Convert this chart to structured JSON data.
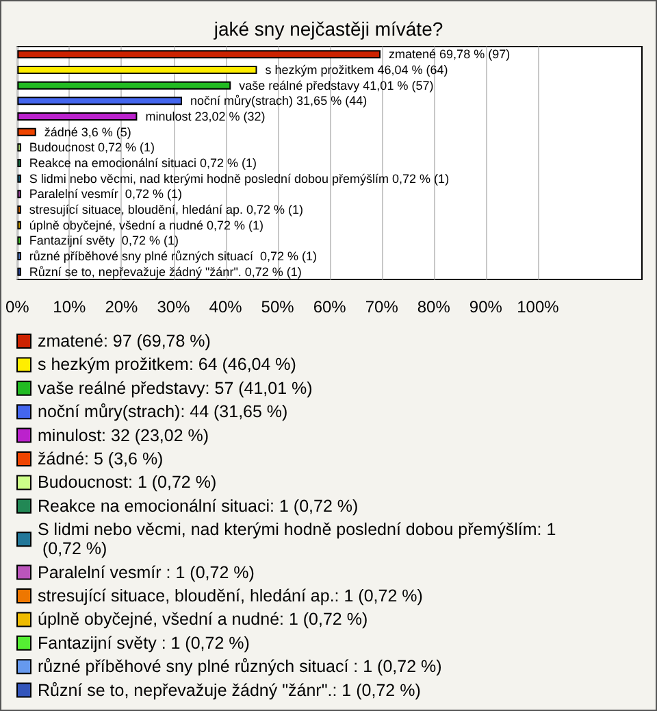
{
  "chart_data": {
    "type": "bar",
    "orientation": "horizontal",
    "stacked": true,
    "title": "jaké sny nejčastěji míváte?",
    "categories": [
      null,
      null,
      null,
      null,
      null,
      null,
      null,
      null,
      null,
      null,
      null,
      null,
      null,
      null,
      null
    ],
    "xlim": [
      0,
      120
    ],
    "xticks": [
      {
        "value": 0,
        "label": "0%"
      },
      {
        "value": 10,
        "label": "10%"
      },
      {
        "value": 20,
        "label": "20%"
      },
      {
        "value": 30,
        "label": "30%"
      },
      {
        "value": 40,
        "label": "40%"
      },
      {
        "value": 50,
        "label": "50%"
      },
      {
        "value": 60,
        "label": "60%"
      },
      {
        "value": 70,
        "label": "70%"
      },
      {
        "value": 80,
        "label": "80%"
      },
      {
        "value": 90,
        "label": "90%"
      },
      {
        "value": 100,
        "label": "100%"
      }
    ],
    "grid": "x",
    "legend": "bottom",
    "series": [
      {
        "name": "zmatené: 97 (69,78 %)",
        "color": "#cc2200",
        "values": [
          69.78,
          null,
          null,
          null,
          null,
          null,
          null,
          null,
          null,
          null,
          null,
          null,
          null,
          null,
          null
        ],
        "value_labels": [
          "zmatené 69,78 % (97)",
          null,
          null,
          null,
          null,
          null,
          null,
          null,
          null,
          null,
          null,
          null,
          null,
          null,
          null
        ]
      },
      {
        "name": "s hezkým prožitkem: 64 (46,04 %)",
        "color": "#ffee00",
        "values": [
          null,
          46.04,
          null,
          null,
          null,
          null,
          null,
          null,
          null,
          null,
          null,
          null,
          null,
          null,
          null
        ],
        "value_labels": [
          null,
          "s hezkým prožitkem 46,04 % (64)",
          null,
          null,
          null,
          null,
          null,
          null,
          null,
          null,
          null,
          null,
          null,
          null,
          null
        ]
      },
      {
        "name": "vaše reálné představy: 57 (41,01 %)",
        "color": "#22bb22",
        "values": [
          null,
          null,
          41.01,
          null,
          null,
          null,
          null,
          null,
          null,
          null,
          null,
          null,
          null,
          null,
          null
        ],
        "value_labels": [
          null,
          null,
          "vaše reálné představy 41,01 % (57)",
          null,
          null,
          null,
          null,
          null,
          null,
          null,
          null,
          null,
          null,
          null,
          null
        ]
      },
      {
        "name": "noční můry(strach): 44 (31,65 %)",
        "color": "#4466ee",
        "values": [
          null,
          null,
          null,
          31.65,
          null,
          null,
          null,
          null,
          null,
          null,
          null,
          null,
          null,
          null,
          null
        ],
        "value_labels": [
          null,
          null,
          null,
          "noční můry(strach) 31,65 % (44)",
          null,
          null,
          null,
          null,
          null,
          null,
          null,
          null,
          null,
          null,
          null
        ]
      },
      {
        "name": "minulost: 32 (23,02 %)",
        "color": "#bb22cc",
        "values": [
          null,
          null,
          null,
          null,
          23.02,
          null,
          null,
          null,
          null,
          null,
          null,
          null,
          null,
          null,
          null
        ],
        "value_labels": [
          null,
          null,
          null,
          null,
          "minulost 23,02 % (32)",
          null,
          null,
          null,
          null,
          null,
          null,
          null,
          null,
          null,
          null
        ]
      },
      {
        "name": "žádné: 5 (3,6 %)",
        "color": "#ee4400",
        "values": [
          null,
          null,
          null,
          null,
          null,
          3.6,
          null,
          null,
          null,
          null,
          null,
          null,
          null,
          null,
          null
        ],
        "value_labels": [
          null,
          null,
          null,
          null,
          null,
          "žádné 3,6 % (5)",
          null,
          null,
          null,
          null,
          null,
          null,
          null,
          null,
          null
        ]
      },
      {
        "name": "Budoucnost: 1 (0,72 %)",
        "color": "#ccff88",
        "values": [
          null,
          null,
          null,
          null,
          null,
          null,
          0.72,
          null,
          null,
          null,
          null,
          null,
          null,
          null,
          null
        ],
        "value_labels": [
          null,
          null,
          null,
          null,
          null,
          null,
          "Budoucnost 0,72 % (1)",
          null,
          null,
          null,
          null,
          null,
          null,
          null,
          null
        ]
      },
      {
        "name": "Reakce na emocionální situaci: 1 (0,72 %)",
        "color": "#228855",
        "values": [
          null,
          null,
          null,
          null,
          null,
          null,
          null,
          0.72,
          null,
          null,
          null,
          null,
          null,
          null,
          null
        ],
        "value_labels": [
          null,
          null,
          null,
          null,
          null,
          null,
          null,
          "Reakce na emocionální situaci 0,72 % (1)",
          null,
          null,
          null,
          null,
          null,
          null,
          null
        ]
      },
      {
        "name": "S lidmi nebo věcmi, nad kterými hodně poslední dobou přemýšlím: 1 (0,72 %)",
        "color": "#227799",
        "values": [
          null,
          null,
          null,
          null,
          null,
          null,
          null,
          null,
          0.72,
          null,
          null,
          null,
          null,
          null,
          null
        ],
        "value_labels": [
          null,
          null,
          null,
          null,
          null,
          null,
          null,
          null,
          "S lidmi nebo věcmi, nad kterými hodně poslední dobou přemýšlím 0,72 % (1)",
          null,
          null,
          null,
          null,
          null,
          null
        ]
      },
      {
        "name": "Paralelní vesmír : 1 (0,72 %)",
        "color": "#bb55bb",
        "values": [
          null,
          null,
          null,
          null,
          null,
          null,
          null,
          null,
          null,
          0.72,
          null,
          null,
          null,
          null,
          null
        ],
        "value_labels": [
          null,
          null,
          null,
          null,
          null,
          null,
          null,
          null,
          null,
          "Paralelní vesmír  0,72 % (1)",
          null,
          null,
          null,
          null,
          null
        ]
      },
      {
        "name": "stresující situace, bloudění, hledání ap.: 1 (0,72 %)",
        "color": "#ee7700",
        "values": [
          null,
          null,
          null,
          null,
          null,
          null,
          null,
          null,
          null,
          null,
          0.72,
          null,
          null,
          null,
          null
        ],
        "value_labels": [
          null,
          null,
          null,
          null,
          null,
          null,
          null,
          null,
          null,
          null,
          "stresující situace, bloudění, hledání ap. 0,72 % (1)",
          null,
          null,
          null,
          null
        ]
      },
      {
        "name": "úplně obyčejné, všední a nudné: 1 (0,72 %)",
        "color": "#eebb00",
        "values": [
          null,
          null,
          null,
          null,
          null,
          null,
          null,
          null,
          null,
          null,
          null,
          0.72,
          null,
          null,
          null
        ],
        "value_labels": [
          null,
          null,
          null,
          null,
          null,
          null,
          null,
          null,
          null,
          null,
          null,
          "úplně obyčejné, všední a nudné 0,72 % (1)",
          null,
          null,
          null
        ]
      },
      {
        "name": "Fantazijní světy : 1 (0,72 %)",
        "color": "#55ee33",
        "values": [
          null,
          null,
          null,
          null,
          null,
          null,
          null,
          null,
          null,
          null,
          null,
          null,
          0.72,
          null,
          null
        ],
        "value_labels": [
          null,
          null,
          null,
          null,
          null,
          null,
          null,
          null,
          null,
          null,
          null,
          null,
          "Fantazijní světy  0,72 % (1)",
          null,
          null
        ]
      },
      {
        "name": "různé příběhové sny plné různých situací : 1 (0,72 %)",
        "color": "#6699ee",
        "values": [
          null,
          null,
          null,
          null,
          null,
          null,
          null,
          null,
          null,
          null,
          null,
          null,
          null,
          0.72,
          null
        ],
        "value_labels": [
          null,
          null,
          null,
          null,
          null,
          null,
          null,
          null,
          null,
          null,
          null,
          null,
          null,
          "různé příběhové sny plné různých situací  0,72 % (1)",
          null
        ]
      },
      {
        "name": "Různí se to, nepřevažuje žádný \"žánr\".: 1 (0,72 %)",
        "color": "#3355bb",
        "values": [
          null,
          null,
          null,
          null,
          null,
          null,
          null,
          null,
          null,
          null,
          null,
          null,
          null,
          null,
          0.72
        ],
        "value_labels": [
          null,
          null,
          null,
          null,
          null,
          null,
          null,
          null,
          null,
          null,
          null,
          null,
          null,
          null,
          "Různí se to, nepřevažuje žádný \"žánr\". 0,72 % (1)"
        ]
      }
    ]
  }
}
